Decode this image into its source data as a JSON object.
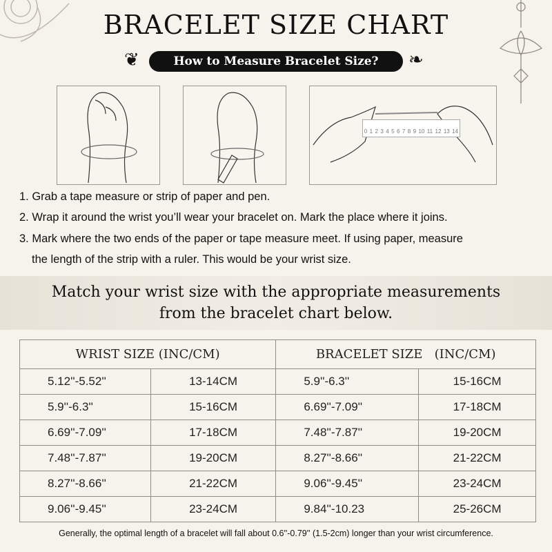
{
  "title": "BRACELET SIZE CHART",
  "subtitle": "How to Measure Bracelet Size?",
  "ruler_labels": [
    "0",
    "1",
    "2",
    "3",
    "4",
    "5",
    "6",
    "7",
    "8",
    "9",
    "10",
    "11",
    "12",
    "13",
    "14"
  ],
  "steps": [
    "1. Grab a tape measure or strip of paper and pen.",
    "2. Wrap it around the wrist you’ll wear your bracelet on. Mark the place where it joins.",
    "3. Mark where the two ends of the paper or tape measure meet. If using paper, measure",
    "the length of the strip with a ruler. This would be your wrist size."
  ],
  "band": {
    "line1": "Match your wrist size with the appropriate measurements",
    "line2": "from the bracelet chart below."
  },
  "table": {
    "headers": [
      "WRIST SIZE (INC/CM)",
      "BRACELET SIZE   (INC/CM)"
    ],
    "rows": [
      [
        "5.12''-5.52''",
        "13-14CM",
        "5.9''-6.3''",
        "15-16CM"
      ],
      [
        "5.9''-6.3''",
        "15-16CM",
        "6.69''-7.09''",
        "17-18CM"
      ],
      [
        "6.69''-7.09''",
        "17-18CM",
        "7.48''-7.87''",
        "19-20CM"
      ],
      [
        "7.48''-7.87''",
        "19-20CM",
        "8.27''-8.66''",
        "21-22CM"
      ],
      [
        "8.27''-8.66''",
        "21-22CM",
        "9.06''-9.45''",
        "23-24CM"
      ],
      [
        "9.06''-9.45''",
        "23-24CM",
        "9.84''-10.23",
        "25-26CM"
      ]
    ]
  },
  "footer": "Generally, the optimal length of a bracelet will fall about 0.6''-0.79'' (1.5-2cm) longer than your wrist circumference."
}
